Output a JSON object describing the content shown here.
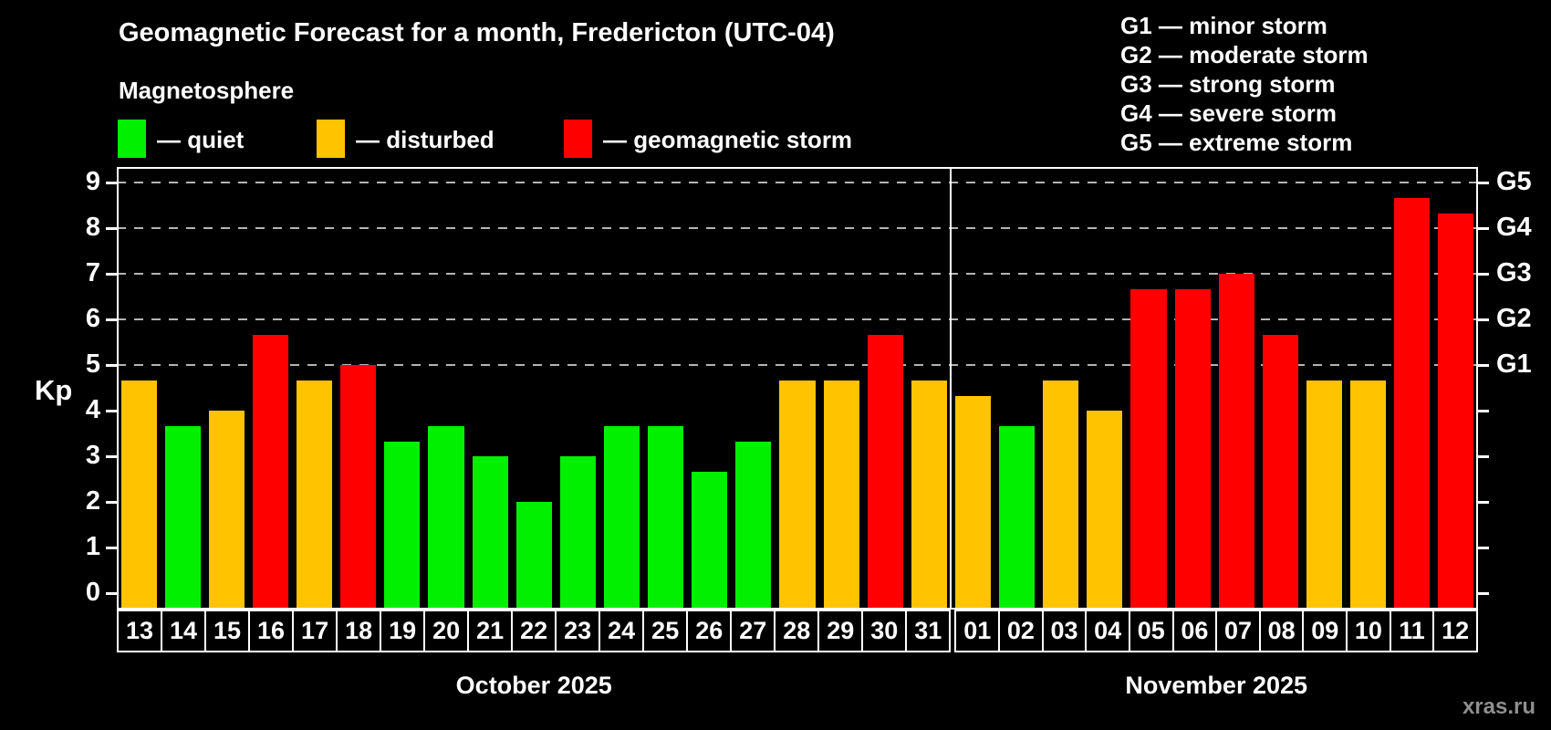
{
  "title": "Geomagnetic Forecast for a month, Fredericton (UTC-04)",
  "subtitle": "Magnetosphere",
  "legend": {
    "items": [
      {
        "key": "quiet",
        "label": "— quiet",
        "color": "#00f000"
      },
      {
        "key": "disturbed",
        "label": "— disturbed",
        "color": "#ffc300"
      },
      {
        "key": "storm",
        "label": "— geomagnetic storm",
        "color": "#ff0000"
      }
    ]
  },
  "g_legend": [
    "G1 — minor storm",
    "G2 — moderate storm",
    "G3 — strong storm",
    "G4 — severe storm",
    "G5 — extreme storm"
  ],
  "watermark": "xras.ru",
  "chart_data": {
    "type": "bar",
    "title": "Geomagnetic Forecast for a month, Fredericton (UTC-04)",
    "ylabel": "Kp",
    "ylim": [
      0,
      9
    ],
    "yticks": [
      0,
      1,
      2,
      3,
      4,
      5,
      6,
      7,
      8,
      9
    ],
    "gridlines_at": [
      5,
      6,
      7,
      8,
      9
    ],
    "grid_style": "dashed",
    "legend_position": "top-left",
    "right_axis": [
      {
        "kp": 5,
        "label": "G1"
      },
      {
        "kp": 6,
        "label": "G2"
      },
      {
        "kp": 7,
        "label": "G3"
      },
      {
        "kp": 8,
        "label": "G4"
      },
      {
        "kp": 9,
        "label": "G5"
      }
    ],
    "colors": {
      "quiet": "#00f000",
      "disturbed": "#ffc300",
      "storm": "#ff0000"
    },
    "months": [
      {
        "label": "October 2025",
        "days": [
          {
            "date": "13",
            "kp": 4.67,
            "state": "disturbed"
          },
          {
            "date": "14",
            "kp": 3.67,
            "state": "quiet"
          },
          {
            "date": "15",
            "kp": 4.0,
            "state": "disturbed"
          },
          {
            "date": "16",
            "kp": 5.67,
            "state": "storm"
          },
          {
            "date": "17",
            "kp": 4.67,
            "state": "disturbed"
          },
          {
            "date": "18",
            "kp": 5.0,
            "state": "storm"
          },
          {
            "date": "19",
            "kp": 3.33,
            "state": "quiet"
          },
          {
            "date": "20",
            "kp": 3.67,
            "state": "quiet"
          },
          {
            "date": "21",
            "kp": 3.0,
            "state": "quiet"
          },
          {
            "date": "22",
            "kp": 2.0,
            "state": "quiet"
          },
          {
            "date": "23",
            "kp": 3.0,
            "state": "quiet"
          },
          {
            "date": "24",
            "kp": 3.67,
            "state": "quiet"
          },
          {
            "date": "25",
            "kp": 3.67,
            "state": "quiet"
          },
          {
            "date": "26",
            "kp": 2.67,
            "state": "quiet"
          },
          {
            "date": "27",
            "kp": 3.33,
            "state": "quiet"
          },
          {
            "date": "28",
            "kp": 4.67,
            "state": "disturbed"
          },
          {
            "date": "29",
            "kp": 4.67,
            "state": "disturbed"
          },
          {
            "date": "30",
            "kp": 5.67,
            "state": "storm"
          },
          {
            "date": "31",
            "kp": 4.67,
            "state": "disturbed"
          }
        ]
      },
      {
        "label": "November 2025",
        "days": [
          {
            "date": "01",
            "kp": 4.33,
            "state": "disturbed"
          },
          {
            "date": "02",
            "kp": 3.67,
            "state": "quiet"
          },
          {
            "date": "03",
            "kp": 4.67,
            "state": "disturbed"
          },
          {
            "date": "04",
            "kp": 4.0,
            "state": "disturbed"
          },
          {
            "date": "05",
            "kp": 6.67,
            "state": "storm"
          },
          {
            "date": "06",
            "kp": 6.67,
            "state": "storm"
          },
          {
            "date": "07",
            "kp": 7.0,
            "state": "storm"
          },
          {
            "date": "08",
            "kp": 5.67,
            "state": "storm"
          },
          {
            "date": "09",
            "kp": 4.67,
            "state": "disturbed"
          },
          {
            "date": "10",
            "kp": 4.67,
            "state": "disturbed"
          },
          {
            "date": "11",
            "kp": 8.67,
            "state": "storm"
          },
          {
            "date": "12",
            "kp": 8.33,
            "state": "storm"
          }
        ]
      }
    ]
  }
}
